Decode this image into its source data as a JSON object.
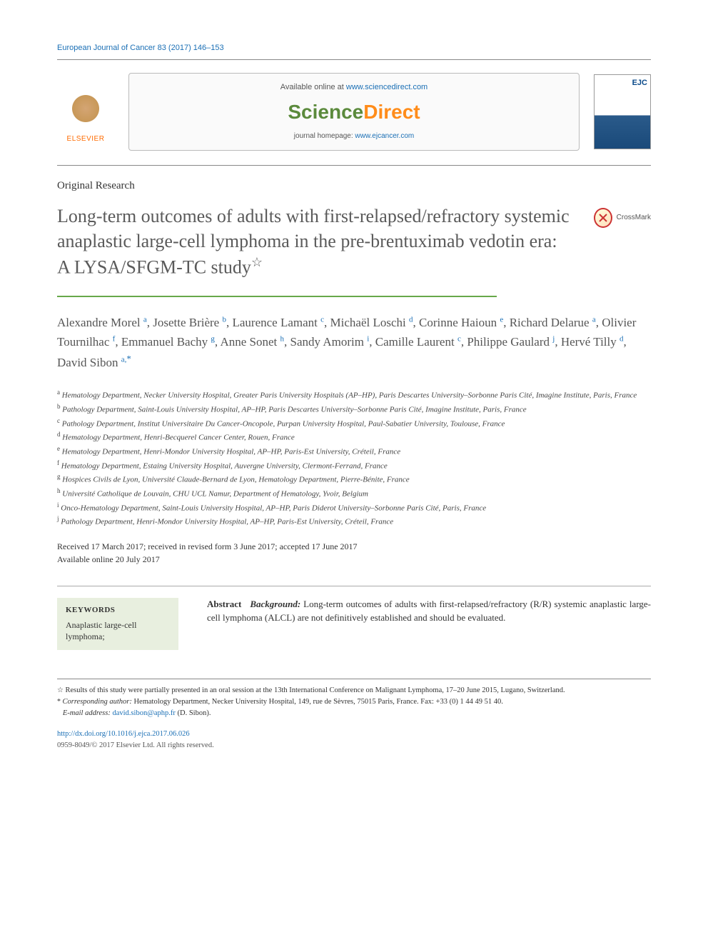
{
  "journal_ref": "European Journal of Cancer  83 (2017) 146–153",
  "available_text": "Available online at ",
  "available_link": "www.sciencedirect.com",
  "sd_logo_1": "Science",
  "sd_logo_2": "Direct",
  "homepage_label": "journal homepage: ",
  "homepage_link": "www.ejcancer.com",
  "elsevier_label": "ELSEVIER",
  "cover_ejc": "EJC",
  "article_type": "Original Research",
  "title": "Long-term outcomes of adults with first-relapsed/refractory systemic anaplastic large-cell lymphoma in the pre-brentuximab vedotin era: A LYSA/SFGM-TC study",
  "crossmark_label": "CrossMark",
  "authors": [
    {
      "name": "Alexandre Morel",
      "aff": "a"
    },
    {
      "name": "Josette Brière",
      "aff": "b"
    },
    {
      "name": "Laurence Lamant",
      "aff": "c"
    },
    {
      "name": "Michaël Loschi",
      "aff": "d"
    },
    {
      "name": "Corinne Haioun",
      "aff": "e"
    },
    {
      "name": "Richard Delarue",
      "aff": "a"
    },
    {
      "name": "Olivier Tournilhac",
      "aff": "f"
    },
    {
      "name": "Emmanuel Bachy",
      "aff": "g"
    },
    {
      "name": "Anne Sonet",
      "aff": "h"
    },
    {
      "name": "Sandy Amorim",
      "aff": "i"
    },
    {
      "name": "Camille Laurent",
      "aff": "c"
    },
    {
      "name": "Philippe Gaulard",
      "aff": "j"
    },
    {
      "name": "Hervé Tilly",
      "aff": "d"
    },
    {
      "name": "David Sibon",
      "aff": "a,",
      "corr": true
    }
  ],
  "affiliations": [
    {
      "key": "a",
      "text": "Hematology Department, Necker University Hospital, Greater Paris University Hospitals (AP–HP), Paris Descartes University–Sorbonne Paris Cité, Imagine Institute, Paris, France"
    },
    {
      "key": "b",
      "text": "Pathology Department, Saint-Louis University Hospital, AP–HP, Paris Descartes University–Sorbonne Paris Cité, Imagine Institute, Paris, France"
    },
    {
      "key": "c",
      "text": "Pathology Department, Institut Universitaire Du Cancer-Oncopole, Purpan University Hospital, Paul-Sabatier University, Toulouse, France"
    },
    {
      "key": "d",
      "text": "Hematology Department, Henri-Becquerel Cancer Center, Rouen, France"
    },
    {
      "key": "e",
      "text": "Hematology Department, Henri-Mondor University Hospital, AP–HP, Paris-Est University, Créteil, France"
    },
    {
      "key": "f",
      "text": "Hematology Department, Estaing University Hospital, Auvergne University, Clermont-Ferrand, France"
    },
    {
      "key": "g",
      "text": "Hospices Civils de Lyon, Université Claude-Bernard de Lyon, Hematology Department, Pierre-Bénite, France"
    },
    {
      "key": "h",
      "text": "Université Catholique de Louvain, CHU UCL Namur, Department of Hematology, Yvoir, Belgium"
    },
    {
      "key": "i",
      "text": "Onco-Hematology Department, Saint-Louis University Hospital, AP–HP, Paris Diderot University–Sorbonne Paris Cité, Paris, France"
    },
    {
      "key": "j",
      "text": "Pathology Department, Henri-Mondor University Hospital, AP–HP, Paris-Est University, Créteil, France"
    }
  ],
  "dates_line1": "Received 17 March 2017; received in revised form 3 June 2017; accepted 17 June 2017",
  "dates_line2": "Available online 20 July 2017",
  "keywords_label": "KEYWORDS",
  "keywords_text": "Anaplastic large-cell lymphoma;",
  "abstract_label": "Abstract",
  "abstract_bg_label": "Background:",
  "abstract_text": " Long-term outcomes of adults with first-relapsed/refractory (R/R) systemic anaplastic large-cell lymphoma (ALCL) are not definitively established and should be evaluated.",
  "footnote_star": "Results of this study were partially presented in an oral session at the 13th International Conference on Malignant Lymphoma, 17–20 June 2015, Lugano, Switzerland.",
  "footnote_corr_label": "Corresponding author:",
  "footnote_corr_text": " Hematology Department, Necker University Hospital, 149, rue de Sèvres, 75015 Paris, France. Fax: +33 (0) 1 44 49 51 40.",
  "footnote_email_label": "E-mail address: ",
  "footnote_email": "david.sibon@aphp.fr",
  "footnote_email_name": " (D. Sibon).",
  "doi_link": "http://dx.doi.org/10.1016/j.ejca.2017.06.026",
  "copyright": "0959-8049/© 2017 Elsevier Ltd. All rights reserved.",
  "colors": {
    "link": "#1a6fb5",
    "accent_green": "#67a84a",
    "keywords_bg": "#e8efdf",
    "title_gray": "#5a5a5a",
    "elsevier_orange": "#ff6b00"
  }
}
